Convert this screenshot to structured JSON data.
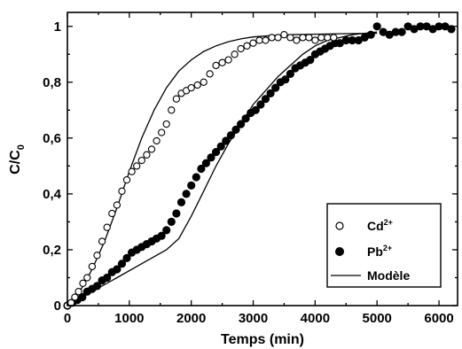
{
  "chart_data": {
    "type": "scatter",
    "title": "",
    "xlabel": "Temps (min)",
    "ylabel_main": "C/C",
    "ylabel_sub": "0",
    "xlim": [
      0,
      6300
    ],
    "ylim": [
      0,
      1.05
    ],
    "x_ticks": [
      0,
      1000,
      2000,
      3000,
      4000,
      5000,
      6000
    ],
    "x_tick_labels": [
      "0",
      "1000",
      "2000",
      "3000",
      "4000",
      "5000",
      "6000"
    ],
    "y_ticks": [
      0,
      0.2,
      0.4,
      0.6,
      0.8,
      1.0
    ],
    "y_tick_labels": [
      "0",
      "0,2",
      "0,4",
      "0,6",
      "0,8",
      "1"
    ],
    "grid": false,
    "legend_position": "lower-right",
    "series": [
      {
        "name": "Cd",
        "name_sup": "2+",
        "marker": "open-circle",
        "color": "#000000",
        "points": [
          [
            0,
            0
          ],
          [
            60,
            0.01
          ],
          [
            120,
            0.03
          ],
          [
            180,
            0.05
          ],
          [
            250,
            0.08
          ],
          [
            320,
            0.1
          ],
          [
            400,
            0.14
          ],
          [
            480,
            0.18
          ],
          [
            560,
            0.23
          ],
          [
            640,
            0.28
          ],
          [
            720,
            0.33
          ],
          [
            800,
            0.36
          ],
          [
            880,
            0.41
          ],
          [
            960,
            0.45
          ],
          [
            1040,
            0.48
          ],
          [
            1120,
            0.5
          ],
          [
            1200,
            0.52
          ],
          [
            1280,
            0.54
          ],
          [
            1360,
            0.56
          ],
          [
            1440,
            0.59
          ],
          [
            1520,
            0.62
          ],
          [
            1600,
            0.65
          ],
          [
            1680,
            0.7
          ],
          [
            1760,
            0.74
          ],
          [
            1840,
            0.76
          ],
          [
            1920,
            0.77
          ],
          [
            2000,
            0.78
          ],
          [
            2100,
            0.79
          ],
          [
            2200,
            0.8
          ],
          [
            2300,
            0.83
          ],
          [
            2400,
            0.86
          ],
          [
            2500,
            0.87
          ],
          [
            2600,
            0.88
          ],
          [
            2700,
            0.9
          ],
          [
            2800,
            0.92
          ],
          [
            2900,
            0.93
          ],
          [
            3000,
            0.94
          ],
          [
            3100,
            0.95
          ],
          [
            3200,
            0.95
          ],
          [
            3300,
            0.96
          ],
          [
            3400,
            0.96
          ],
          [
            3500,
            0.97
          ],
          [
            3600,
            0.96
          ],
          [
            3700,
            0.95
          ],
          [
            3800,
            0.96
          ],
          [
            3900,
            0.96
          ],
          [
            4000,
            0.95
          ],
          [
            4100,
            0.96
          ],
          [
            4200,
            0.96
          ],
          [
            4300,
            0.96
          ]
        ]
      },
      {
        "name": "Pb",
        "name_sup": "2+",
        "marker": "filled-circle",
        "color": "#000000",
        "points": [
          [
            0,
            0
          ],
          [
            80,
            0.01
          ],
          [
            160,
            0.02
          ],
          [
            240,
            0.03
          ],
          [
            320,
            0.05
          ],
          [
            400,
            0.06
          ],
          [
            480,
            0.07
          ],
          [
            560,
            0.09
          ],
          [
            640,
            0.1
          ],
          [
            720,
            0.12
          ],
          [
            800,
            0.13
          ],
          [
            880,
            0.15
          ],
          [
            960,
            0.17
          ],
          [
            1040,
            0.19
          ],
          [
            1120,
            0.2
          ],
          [
            1200,
            0.21
          ],
          [
            1280,
            0.22
          ],
          [
            1360,
            0.23
          ],
          [
            1440,
            0.24
          ],
          [
            1520,
            0.25
          ],
          [
            1600,
            0.27
          ],
          [
            1680,
            0.3
          ],
          [
            1760,
            0.33
          ],
          [
            1840,
            0.37
          ],
          [
            1920,
            0.4
          ],
          [
            2000,
            0.43
          ],
          [
            2080,
            0.46
          ],
          [
            2160,
            0.49
          ],
          [
            2240,
            0.51
          ],
          [
            2320,
            0.53
          ],
          [
            2400,
            0.55
          ],
          [
            2480,
            0.57
          ],
          [
            2560,
            0.59
          ],
          [
            2640,
            0.61
          ],
          [
            2720,
            0.63
          ],
          [
            2800,
            0.65
          ],
          [
            2880,
            0.67
          ],
          [
            2960,
            0.69
          ],
          [
            3040,
            0.7
          ],
          [
            3120,
            0.72
          ],
          [
            3200,
            0.74
          ],
          [
            3280,
            0.76
          ],
          [
            3360,
            0.78
          ],
          [
            3440,
            0.8
          ],
          [
            3520,
            0.81
          ],
          [
            3600,
            0.83
          ],
          [
            3680,
            0.85
          ],
          [
            3760,
            0.86
          ],
          [
            3840,
            0.87
          ],
          [
            3920,
            0.88
          ],
          [
            4000,
            0.9
          ],
          [
            4080,
            0.91
          ],
          [
            4160,
            0.92
          ],
          [
            4240,
            0.93
          ],
          [
            4320,
            0.94
          ],
          [
            4400,
            0.94
          ],
          [
            4500,
            0.95
          ],
          [
            4600,
            0.95
          ],
          [
            4700,
            0.95
          ],
          [
            4800,
            0.96
          ],
          [
            4900,
            0.97
          ],
          [
            5000,
            1.0
          ],
          [
            5100,
            0.98
          ],
          [
            5200,
            0.97
          ],
          [
            5300,
            0.98
          ],
          [
            5400,
            0.98
          ],
          [
            5500,
            1.0
          ],
          [
            5600,
            0.99
          ],
          [
            5700,
            1.0
          ],
          [
            5800,
            1.0
          ],
          [
            5900,
            0.99
          ],
          [
            6000,
            1.0
          ],
          [
            6100,
            1.0
          ],
          [
            6200,
            0.99
          ]
        ]
      },
      {
        "name": "Modèle",
        "marker": "line",
        "color": "#000000",
        "curves": [
          [
            [
              0,
              0
            ],
            [
              200,
              0.05
            ],
            [
              400,
              0.13
            ],
            [
              600,
              0.23
            ],
            [
              800,
              0.35
            ],
            [
              1000,
              0.48
            ],
            [
              1200,
              0.6
            ],
            [
              1400,
              0.7
            ],
            [
              1600,
              0.78
            ],
            [
              1800,
              0.84
            ],
            [
              2000,
              0.88
            ],
            [
              2200,
              0.91
            ],
            [
              2400,
              0.93
            ],
            [
              2600,
              0.945
            ],
            [
              2800,
              0.955
            ],
            [
              3000,
              0.962
            ],
            [
              3300,
              0.967
            ],
            [
              3600,
              0.97
            ],
            [
              4000,
              0.972
            ],
            [
              4500,
              0.974
            ],
            [
              5000,
              0.975
            ]
          ],
          [
            [
              0,
              0
            ],
            [
              400,
              0.05
            ],
            [
              800,
              0.1
            ],
            [
              1200,
              0.15
            ],
            [
              1600,
              0.2
            ],
            [
              1800,
              0.24
            ],
            [
              2000,
              0.32
            ],
            [
              2200,
              0.41
            ],
            [
              2400,
              0.5
            ],
            [
              2600,
              0.58
            ],
            [
              2800,
              0.65
            ],
            [
              3000,
              0.72
            ],
            [
              3200,
              0.77
            ],
            [
              3400,
              0.82
            ],
            [
              3600,
              0.86
            ],
            [
              3800,
              0.9
            ],
            [
              4000,
              0.93
            ],
            [
              4200,
              0.95
            ],
            [
              4400,
              0.96
            ],
            [
              4600,
              0.97
            ],
            [
              4800,
              0.975
            ],
            [
              5000,
              0.98
            ]
          ]
        ]
      }
    ]
  }
}
